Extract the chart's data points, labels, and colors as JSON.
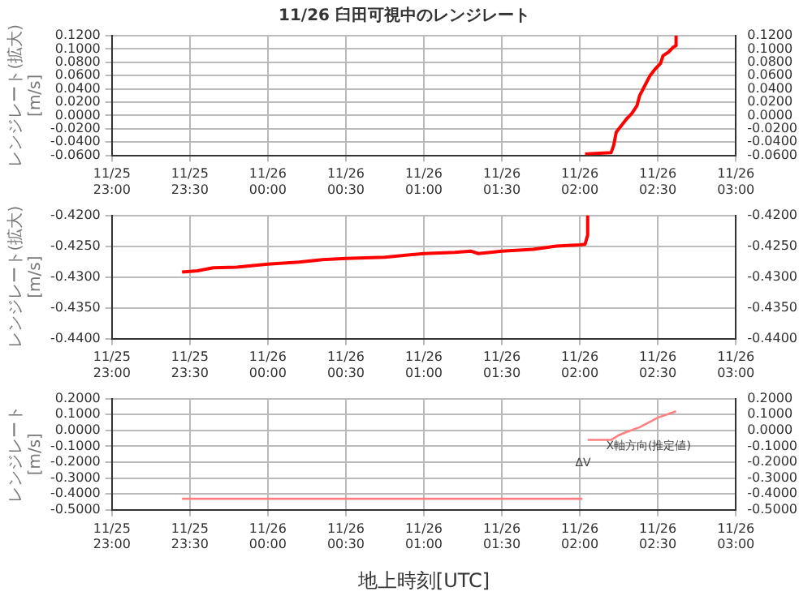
{
  "chart_data": [
    {
      "type": "line",
      "title": "11/26 臼田可視中のレンジレート",
      "ylabel": "レンジレート(拡大) [m/s]",
      "xlim": [
        "--11-25T23:00",
        "--11-26T03:00"
      ],
      "xticks": [
        {
          "value": "--11-25T23:00",
          "label": "11/25 23:00"
        },
        {
          "value": "--11-25T23:30",
          "label": "11/25 23:30"
        },
        {
          "value": "--11-26T00:00",
          "label": "11/26 00:00"
        },
        {
          "value": "--11-26T00:30",
          "label": "11/26 00:30"
        },
        {
          "value": "--11-26T01:00",
          "label": "11/26 01:00"
        },
        {
          "value": "--11-26T01:30",
          "label": "11/26 01:30"
        },
        {
          "value": "--11-26T02:00",
          "label": "11/26 02:00"
        },
        {
          "value": "--11-26T02:30",
          "label": "11/26 02:30"
        },
        {
          "value": "--11-26T03:00",
          "label": "11/26 03:00"
        }
      ],
      "ylim": [
        -0.06,
        0.12
      ],
      "yticks": [
        {
          "value": -0.06,
          "label": "-0.0600"
        },
        {
          "value": -0.04,
          "label": "-0.0400"
        },
        {
          "value": -0.02,
          "label": "-0.0200"
        },
        {
          "value": 0,
          "label": "0.0000"
        },
        {
          "value": 0.02,
          "label": "0.0200"
        },
        {
          "value": 0.04,
          "label": "0.0400"
        },
        {
          "value": 0.06,
          "label": "0.0600"
        },
        {
          "value": 0.08,
          "label": "0.0800"
        },
        {
          "value": 0.1,
          "label": "0.1000"
        },
        {
          "value": 0.12,
          "label": "0.1200"
        }
      ],
      "y2lim": [
        -0.06,
        0.12
      ],
      "y2ticks": [
        {
          "value": -0.06,
          "label": "-0.0600"
        },
        {
          "value": -0.04,
          "label": "-0.0400"
        },
        {
          "value": -0.02,
          "label": "-0.0200"
        },
        {
          "value": 0,
          "label": "0.0000"
        },
        {
          "value": 0.02,
          "label": "0.0200"
        },
        {
          "value": 0.04,
          "label": "0.0400"
        },
        {
          "value": 0.06,
          "label": "0.0600"
        },
        {
          "value": 0.08,
          "label": "0.0800"
        },
        {
          "value": 0.1,
          "label": "0.1000"
        },
        {
          "value": 0.12,
          "label": "0.1200"
        }
      ],
      "grid": true,
      "marker": "none",
      "line_style": "solid",
      "series": [
        {
          "color": "#ff0000",
          "x": [
            "--11-26T02:02",
            "--11-26T02:06",
            "--11-26T02:12",
            "--11-26T02:13",
            "--11-26T02:14",
            "--11-26T02:16",
            "--11-26T02:18",
            "--11-26T02:20",
            "--11-26T02:22",
            "--11-26T02:23",
            "--11-26T02:25",
            "--11-26T02:27",
            "--11-26T02:29",
            "--11-26T02:31",
            "--11-26T02:32",
            "--11-26T02:34",
            "--11-26T02:36",
            "--11-26T02:37",
            "--11-26T02:37"
          ],
          "values": [
            -0.058,
            -0.057,
            -0.056,
            -0.045,
            -0.025,
            -0.015,
            -0.005,
            0.003,
            0.015,
            0.03,
            0.045,
            0.06,
            0.07,
            0.078,
            0.09,
            0.095,
            0.103,
            0.105,
            0.12
          ]
        }
      ]
    },
    {
      "type": "line",
      "ylabel": "レンジレート(拡大) [m/s]",
      "xlim": [
        "--11-25T23:00",
        "--11-26T03:00"
      ],
      "xticks": [
        {
          "value": "--11-25T23:00",
          "label": "11/25 23:00"
        },
        {
          "value": "--11-25T23:30",
          "label": "11/25 23:30"
        },
        {
          "value": "--11-26T00:00",
          "label": "11/26 00:00"
        },
        {
          "value": "--11-26T00:30",
          "label": "11/26 00:30"
        },
        {
          "value": "--11-26T01:00",
          "label": "11/26 01:00"
        },
        {
          "value": "--11-26T01:30",
          "label": "11/26 01:30"
        },
        {
          "value": "--11-26T02:00",
          "label": "11/26 02:00"
        },
        {
          "value": "--11-26T02:30",
          "label": "11/26 02:30"
        },
        {
          "value": "--11-26T03:00",
          "label": "11/26 03:00"
        }
      ],
      "ylim": [
        -0.44,
        -0.42
      ],
      "yticks": [
        {
          "value": -0.44,
          "label": "-0.4400"
        },
        {
          "value": -0.435,
          "label": "-0.4350"
        },
        {
          "value": -0.43,
          "label": "-0.4300"
        },
        {
          "value": -0.425,
          "label": "-0.4250"
        },
        {
          "value": -0.42,
          "label": "-0.4200"
        }
      ],
      "y2lim": [
        -0.44,
        -0.42
      ],
      "y2ticks": [
        {
          "value": -0.44,
          "label": "-0.4400"
        },
        {
          "value": -0.435,
          "label": "-0.4350"
        },
        {
          "value": -0.43,
          "label": "-0.4300"
        },
        {
          "value": -0.425,
          "label": "-0.4250"
        },
        {
          "value": -0.42,
          "label": "-0.4200"
        }
      ],
      "grid": true,
      "marker": "none",
      "line_style": "solid",
      "series": [
        {
          "color": "#ff0000",
          "x": [
            "--11-25T23:27",
            "--11-25T23:33",
            "--11-25T23:39",
            "--11-25T23:48",
            "--11-26T00:00",
            "--11-26T00:12",
            "--11-26T00:21",
            "--11-26T00:30",
            "--11-26T00:45",
            "--11-26T01:00",
            "--11-26T01:12",
            "--11-26T01:18",
            "--11-26T01:21",
            "--11-26T01:30",
            "--11-26T01:42",
            "--11-26T01:51",
            "--11-26T02:00",
            "--11-26T02:02",
            "--11-26T02:03",
            "--11-26T02:03"
          ],
          "values": [
            -0.4292,
            -0.429,
            -0.4285,
            -0.4284,
            -0.4279,
            -0.4276,
            -0.4272,
            -0.427,
            -0.4268,
            -0.4262,
            -0.426,
            -0.4258,
            -0.4262,
            -0.4258,
            -0.4255,
            -0.425,
            -0.4248,
            -0.4247,
            -0.4232,
            -0.42
          ]
        }
      ]
    },
    {
      "type": "line",
      "ylabel": "レンジレート [m/s]",
      "xlabel": "地上時刻[UTC]",
      "xlim": [
        "--11-25T23:00",
        "--11-26T03:00"
      ],
      "xticks": [
        {
          "value": "--11-25T23:00",
          "label": "11/25 23:00"
        },
        {
          "value": "--11-25T23:30",
          "label": "11/25 23:30"
        },
        {
          "value": "--11-26T00:00",
          "label": "11/26 00:00"
        },
        {
          "value": "--11-26T00:30",
          "label": "11/26 00:30"
        },
        {
          "value": "--11-26T01:00",
          "label": "11/26 01:00"
        },
        {
          "value": "--11-26T01:30",
          "label": "11/26 01:30"
        },
        {
          "value": "--11-26T02:00",
          "label": "11/26 02:00"
        },
        {
          "value": "--11-26T02:30",
          "label": "11/26 02:30"
        },
        {
          "value": "--11-26T03:00",
          "label": "11/26 03:00"
        }
      ],
      "ylim": [
        -0.5,
        0.2
      ],
      "yticks": [
        {
          "value": -0.5,
          "label": "-0.5000"
        },
        {
          "value": -0.4,
          "label": "-0.4000"
        },
        {
          "value": -0.3,
          "label": "-0.3000"
        },
        {
          "value": -0.2,
          "label": "-0.2000"
        },
        {
          "value": -0.1,
          "label": "-0.1000"
        },
        {
          "value": 0,
          "label": "0.0000"
        },
        {
          "value": 0.1,
          "label": "0.1000"
        },
        {
          "value": 0.2,
          "label": "0.2000"
        }
      ],
      "y2lim": [
        -0.5,
        0.2
      ],
      "y2ticks": [
        {
          "value": -0.5,
          "label": "-0.5000"
        },
        {
          "value": -0.4,
          "label": "-0.4000"
        },
        {
          "value": -0.3,
          "label": "-0.3000"
        },
        {
          "value": -0.2,
          "label": "-0.2000"
        },
        {
          "value": -0.1,
          "label": "-0.1000"
        },
        {
          "value": 0,
          "label": "0.0000"
        },
        {
          "value": 0.1,
          "label": "0.1000"
        },
        {
          "value": 0.2,
          "label": "0.2000"
        }
      ],
      "grid": true,
      "marker": "none",
      "line_style": "solid",
      "annotations": [
        "ΔV",
        "X軸方向(推定値)"
      ],
      "series": [
        {
          "color": "#ff8080",
          "x": [
            "--11-25T23:27",
            "--11-26T00:30",
            "--11-26T01:30",
            "--11-26T02:01",
            "--11-26T02:02",
            "--11-26T02:03",
            "--11-26T02:12",
            "--11-26T02:15",
            "--11-26T02:18",
            "--11-26T02:23",
            "--11-26T02:30",
            "--11-26T02:37"
          ],
          "values": [
            -0.43,
            -0.43,
            -0.43,
            -0.43,
            null,
            -0.06,
            -0.06,
            -0.03,
            -0.01,
            0.02,
            0.08,
            0.12
          ]
        }
      ]
    }
  ]
}
